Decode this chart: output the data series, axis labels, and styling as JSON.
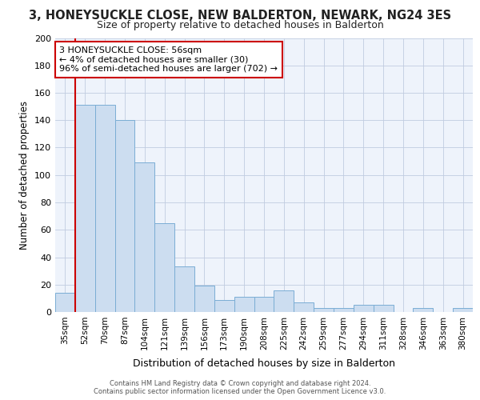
{
  "title1": "3, HONEYSUCKLE CLOSE, NEW BALDERTON, NEWARK, NG24 3ES",
  "title2": "Size of property relative to detached houses in Balderton",
  "xlabel": "Distribution of detached houses by size in Balderton",
  "ylabel": "Number of detached properties",
  "categories": [
    "35sqm",
    "52sqm",
    "70sqm",
    "87sqm",
    "104sqm",
    "121sqm",
    "139sqm",
    "156sqm",
    "173sqm",
    "190sqm",
    "208sqm",
    "225sqm",
    "242sqm",
    "259sqm",
    "277sqm",
    "294sqm",
    "311sqm",
    "328sqm",
    "346sqm",
    "363sqm",
    "380sqm"
  ],
  "values": [
    14,
    151,
    151,
    140,
    109,
    65,
    33,
    19,
    9,
    11,
    11,
    16,
    7,
    3,
    3,
    5,
    5,
    0,
    3,
    0,
    3
  ],
  "bar_fill_color": "#ccddf0",
  "bar_edge_color": "#7aadd4",
  "red_line_color": "#cc0000",
  "highlight_bar_index": 1,
  "annotation_text": "3 HONEYSUCKLE CLOSE: 56sqm\n← 4% of detached houses are smaller (30)\n96% of semi-detached houses are larger (702) →",
  "annotation_box_facecolor": "#ffffff",
  "annotation_box_edgecolor": "#cc0000",
  "bg_color": "#eef3fb",
  "ylim": [
    0,
    200
  ],
  "yticks": [
    0,
    20,
    40,
    60,
    80,
    100,
    120,
    140,
    160,
    180,
    200
  ],
  "title1_fontsize": 10.5,
  "title2_fontsize": 9,
  "ylabel_fontsize": 8.5,
  "xlabel_fontsize": 9,
  "footer_line1": "Contains HM Land Registry data © Crown copyright and database right 2024.",
  "footer_line2": "Contains public sector information licensed under the Open Government Licence v3.0."
}
